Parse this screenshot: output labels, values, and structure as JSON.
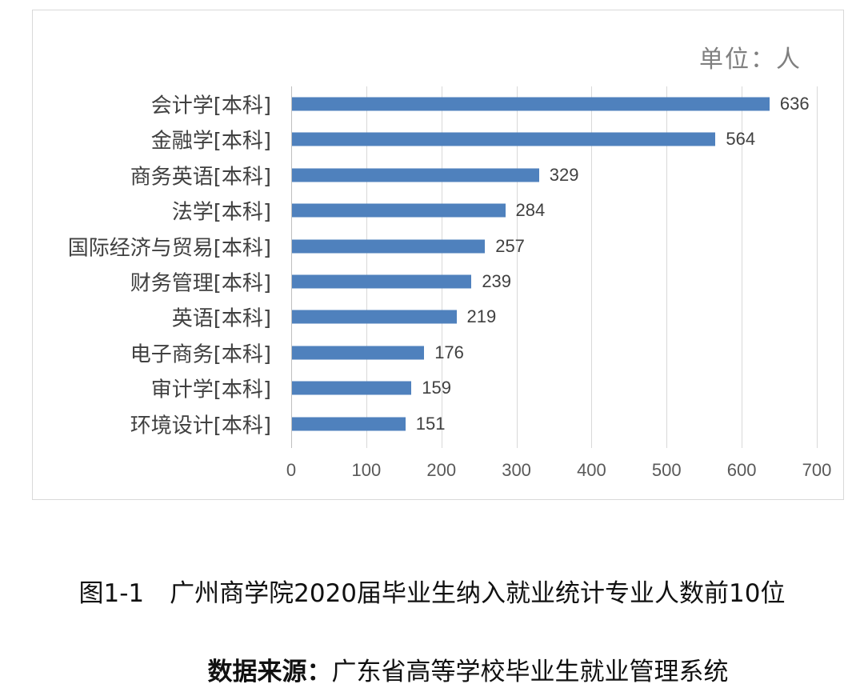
{
  "unit_label": "单位：人",
  "caption": {
    "figure_number": "图1-1",
    "title": "广州商学院2020届毕业生纳入就业统计专业人数前10位",
    "source_prefix": "数据来源",
    "source_colon": "：",
    "source_text": "广东省高等学校毕业生就业管理系统"
  },
  "colors": {
    "bar": "#4f81bd",
    "grid": "#d9d9d9",
    "text": "#404040"
  },
  "chart_data": {
    "type": "bar",
    "orientation": "horizontal",
    "title": "广州商学院2020届毕业生纳入就业统计专业人数前10位",
    "unit": "单位：人",
    "xlabel": "",
    "ylabel": "",
    "xlim": [
      0,
      700
    ],
    "ticks": [
      "0",
      "100",
      "200",
      "300",
      "400",
      "500",
      "600",
      "700"
    ],
    "grid": true,
    "legend": null,
    "data_labels": true,
    "categories": [
      "会计学[本科]",
      "金融学[本科]",
      "商务英语[本科]",
      "法学[本科]",
      "国际经济与贸易[本科]",
      "财务管理[本科]",
      "英语[本科]",
      "电子商务[本科]",
      "审计学[本科]",
      "环境设计[本科]"
    ],
    "values": [
      636,
      564,
      329,
      284,
      257,
      239,
      219,
      176,
      159,
      151
    ],
    "source": "数据来源：广东省高等学校毕业生就业管理系统"
  }
}
